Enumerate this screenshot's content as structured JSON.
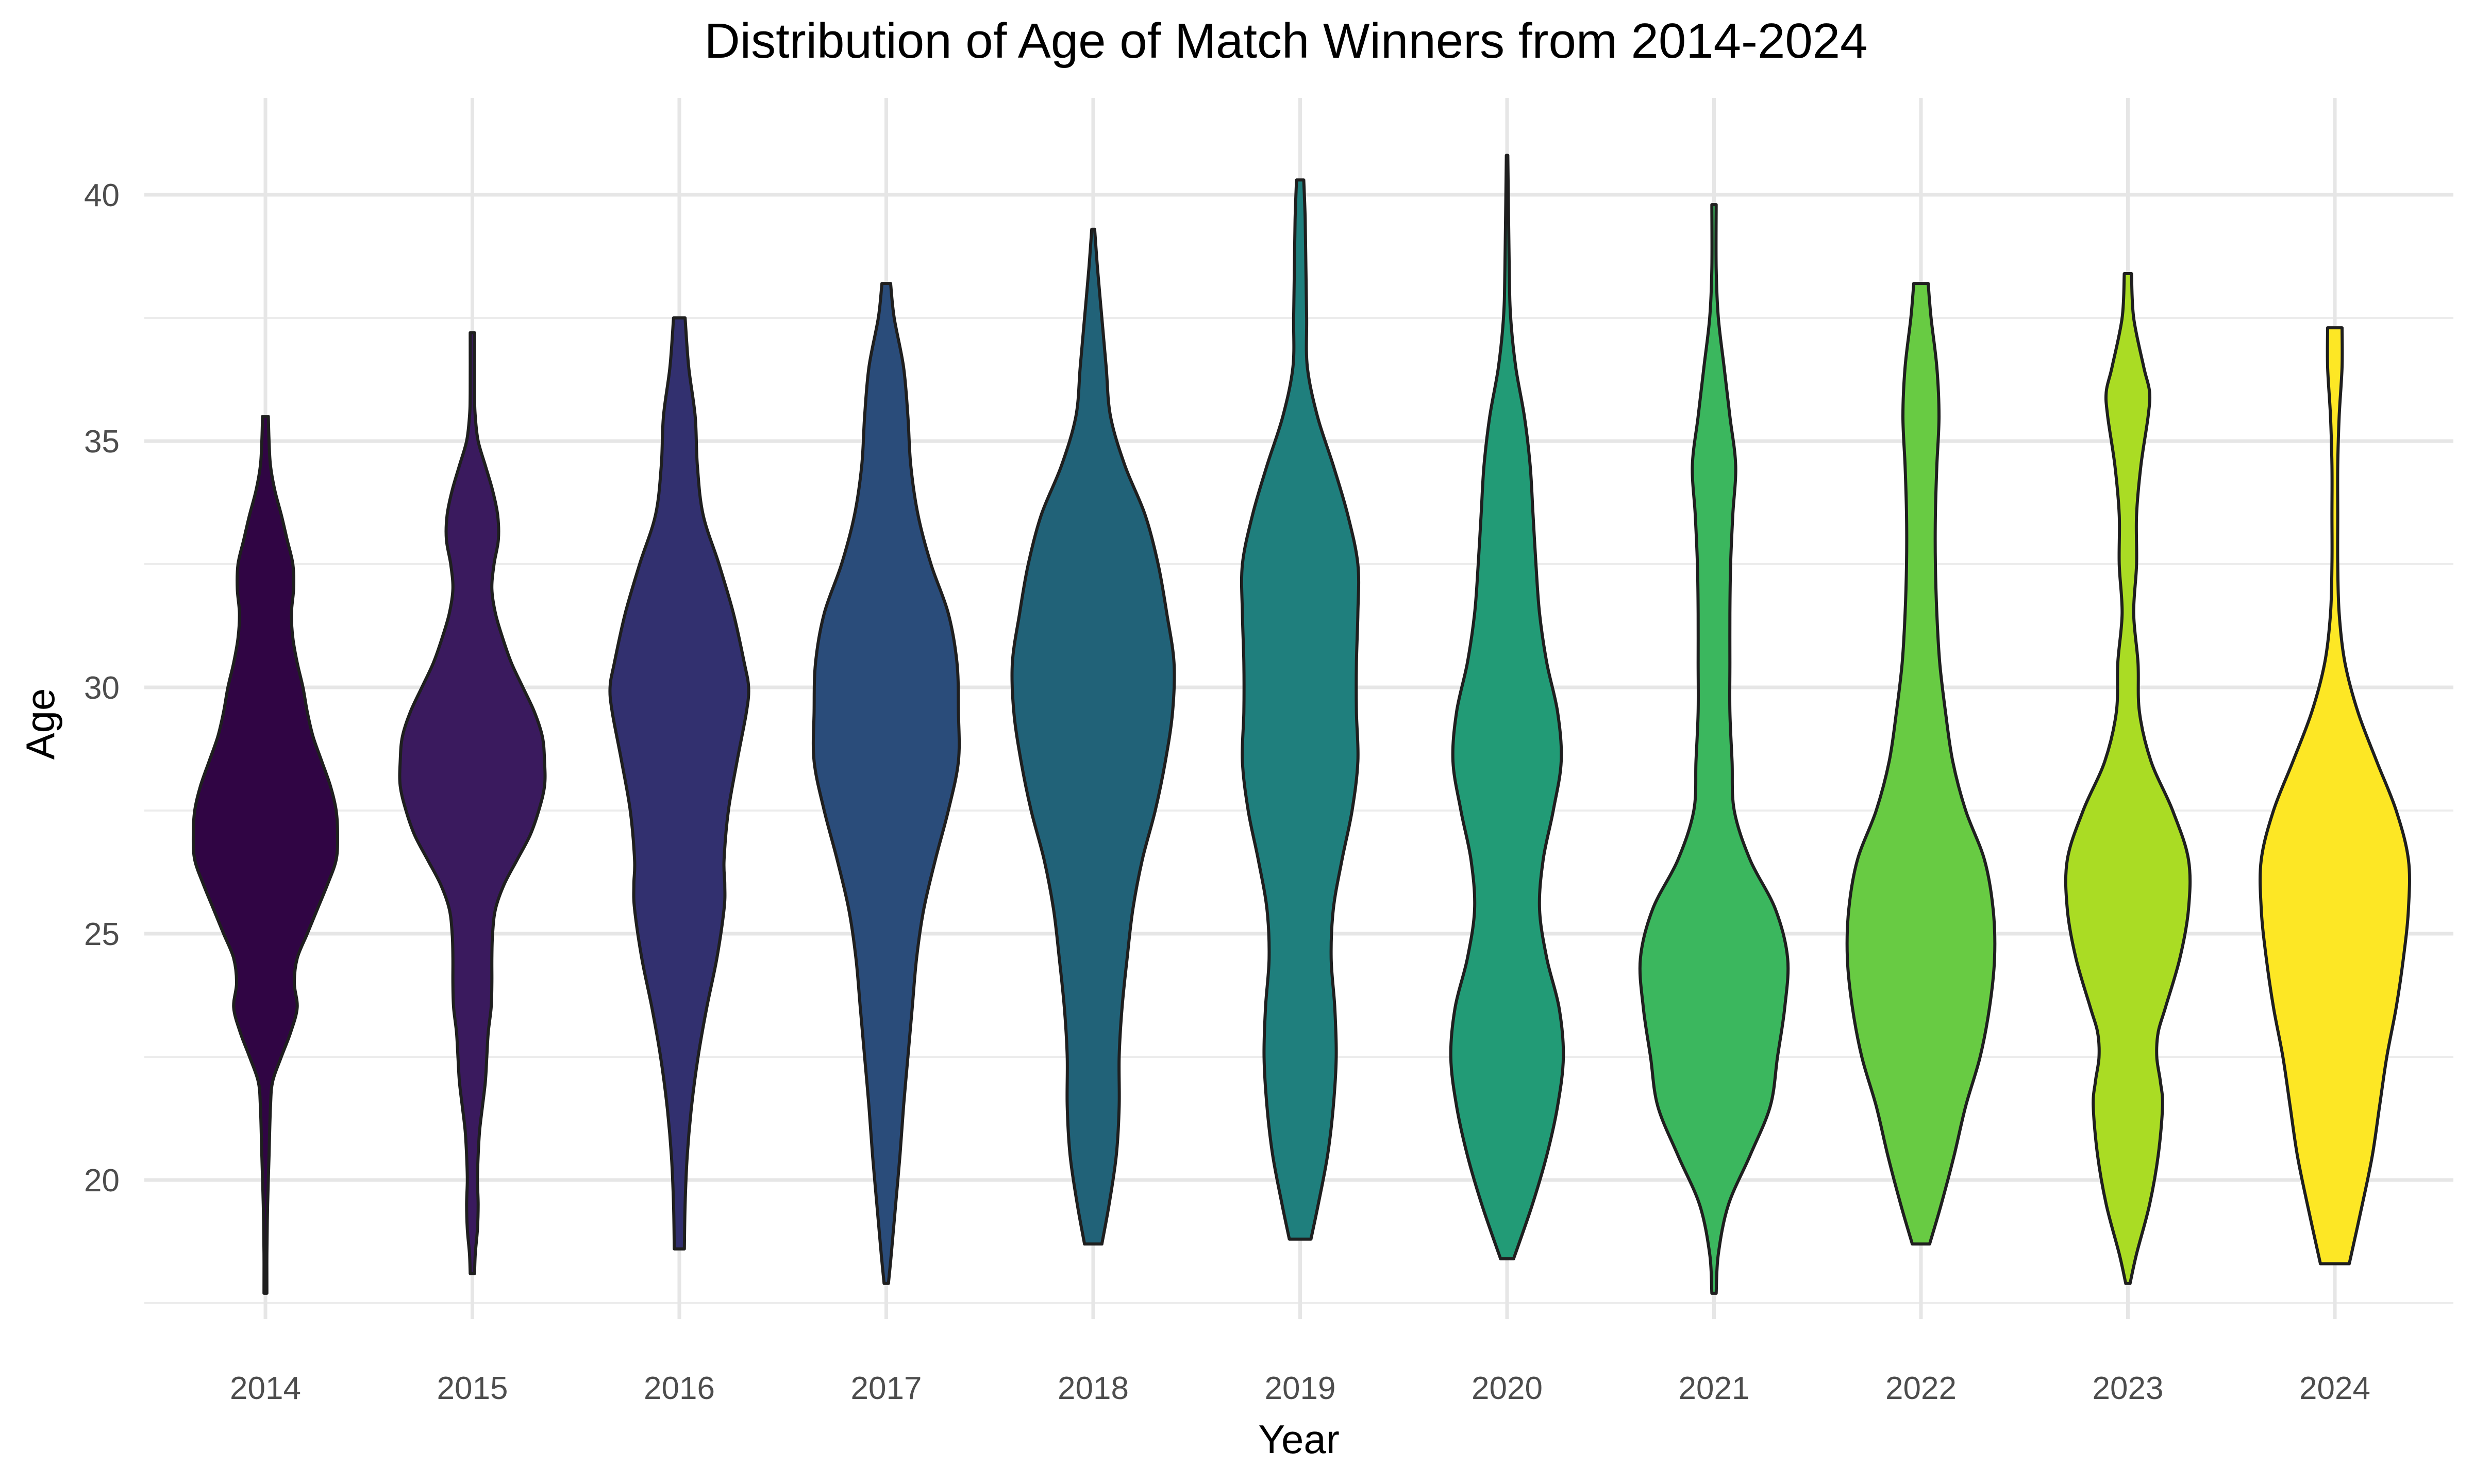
{
  "chart_data": {
    "type": "violin",
    "title": "Distribution of Age of Match Winners from 2014-2024",
    "xlabel": "Year",
    "ylabel": "Age",
    "ylim": [
      16.7,
      42
    ],
    "yticks": [
      20,
      25,
      30,
      35,
      40
    ],
    "grid": true,
    "legend": "none",
    "categories": [
      "2014",
      "2015",
      "2016",
      "2017",
      "2018",
      "2019",
      "2020",
      "2021",
      "2022",
      "2023",
      "2024"
    ],
    "series": [
      {
        "category": "2014",
        "color": "#300544",
        "min": 17.7,
        "max": 35.5,
        "density": [
          [
            17.7,
            0.02
          ],
          [
            18.5,
            0.02
          ],
          [
            19.5,
            0.03
          ],
          [
            20.5,
            0.05
          ],
          [
            21.5,
            0.07
          ],
          [
            22,
            0.1
          ],
          [
            22.5,
            0.22
          ],
          [
            23,
            0.35
          ],
          [
            23.5,
            0.44
          ],
          [
            24,
            0.4
          ],
          [
            24.5,
            0.44
          ],
          [
            25,
            0.58
          ],
          [
            25.5,
            0.72
          ],
          [
            26,
            0.86
          ],
          [
            26.5,
            0.98
          ],
          [
            27,
            1.0
          ],
          [
            27.5,
            0.98
          ],
          [
            28,
            0.9
          ],
          [
            28.5,
            0.78
          ],
          [
            29,
            0.66
          ],
          [
            29.5,
            0.58
          ],
          [
            30,
            0.52
          ],
          [
            30.5,
            0.44
          ],
          [
            31,
            0.38
          ],
          [
            31.5,
            0.36
          ],
          [
            32,
            0.39
          ],
          [
            32.5,
            0.38
          ],
          [
            33,
            0.3
          ],
          [
            33.5,
            0.22
          ],
          [
            34,
            0.13
          ],
          [
            34.5,
            0.07
          ],
          [
            35,
            0.05
          ],
          [
            35.5,
            0.04
          ]
        ]
      },
      {
        "category": "2015",
        "color": "#3a1a5e",
        "min": 18.1,
        "max": 37.2,
        "density": [
          [
            18.1,
            0.03
          ],
          [
            18.5,
            0.04
          ],
          [
            19,
            0.07
          ],
          [
            19.5,
            0.08
          ],
          [
            20,
            0.07
          ],
          [
            20.5,
            0.08
          ],
          [
            21,
            0.1
          ],
          [
            21.5,
            0.14
          ],
          [
            22,
            0.18
          ],
          [
            22.5,
            0.2
          ],
          [
            23,
            0.22
          ],
          [
            23.5,
            0.26
          ],
          [
            24,
            0.27
          ],
          [
            24.5,
            0.27
          ],
          [
            25,
            0.28
          ],
          [
            25.5,
            0.32
          ],
          [
            26,
            0.44
          ],
          [
            26.5,
            0.62
          ],
          [
            27,
            0.8
          ],
          [
            27.5,
            0.92
          ],
          [
            28,
            1.0
          ],
          [
            28.5,
            1.0
          ],
          [
            29,
            0.97
          ],
          [
            29.5,
            0.86
          ],
          [
            30,
            0.7
          ],
          [
            30.5,
            0.54
          ],
          [
            31,
            0.42
          ],
          [
            31.5,
            0.32
          ],
          [
            32,
            0.27
          ],
          [
            32.5,
            0.3
          ],
          [
            33,
            0.36
          ],
          [
            33.5,
            0.35
          ],
          [
            34,
            0.28
          ],
          [
            34.5,
            0.18
          ],
          [
            35,
            0.08
          ],
          [
            35.5,
            0.04
          ],
          [
            36,
            0.03
          ],
          [
            37.2,
            0.03
          ]
        ]
      },
      {
        "category": "2016",
        "color": "#32306f",
        "min": 18.6,
        "max": 37.5,
        "density": [
          [
            18.6,
            0.07
          ],
          [
            19.5,
            0.08
          ],
          [
            20.5,
            0.11
          ],
          [
            21.5,
            0.17
          ],
          [
            22.5,
            0.26
          ],
          [
            23.5,
            0.38
          ],
          [
            24.5,
            0.52
          ],
          [
            25.5,
            0.62
          ],
          [
            26,
            0.63
          ],
          [
            26.5,
            0.62
          ],
          [
            27.5,
            0.68
          ],
          [
            28.5,
            0.8
          ],
          [
            29.5,
            0.93
          ],
          [
            30,
            0.96
          ],
          [
            30.5,
            0.9
          ],
          [
            31.5,
            0.75
          ],
          [
            32.5,
            0.55
          ],
          [
            33.5,
            0.33
          ],
          [
            34.5,
            0.25
          ],
          [
            35.5,
            0.22
          ],
          [
            36.5,
            0.13
          ],
          [
            37.5,
            0.08
          ]
        ]
      },
      {
        "category": "2017",
        "color": "#2a4c7a",
        "min": 17.9,
        "max": 38.2,
        "density": [
          [
            17.9,
            0.03
          ],
          [
            18.5,
            0.07
          ],
          [
            19.5,
            0.13
          ],
          [
            20.5,
            0.19
          ],
          [
            21.5,
            0.24
          ],
          [
            22.5,
            0.3
          ],
          [
            23.5,
            0.36
          ],
          [
            24.5,
            0.42
          ],
          [
            25.5,
            0.52
          ],
          [
            26.5,
            0.68
          ],
          [
            27.5,
            0.86
          ],
          [
            28.5,
            1.0
          ],
          [
            29.5,
            1.0
          ],
          [
            30.5,
            0.98
          ],
          [
            31.5,
            0.86
          ],
          [
            32.5,
            0.62
          ],
          [
            33.5,
            0.44
          ],
          [
            34.5,
            0.34
          ],
          [
            35.5,
            0.3
          ],
          [
            36.5,
            0.24
          ],
          [
            37.5,
            0.11
          ],
          [
            38.2,
            0.06
          ]
        ]
      },
      {
        "category": "2018",
        "color": "#216278",
        "min": 18.7,
        "max": 39.3,
        "density": [
          [
            18.7,
            0.12
          ],
          [
            19.5,
            0.22
          ],
          [
            20.5,
            0.32
          ],
          [
            21.5,
            0.36
          ],
          [
            22.5,
            0.36
          ],
          [
            23.5,
            0.4
          ],
          [
            24.5,
            0.47
          ],
          [
            25.5,
            0.55
          ],
          [
            26.5,
            0.68
          ],
          [
            27.5,
            0.86
          ],
          [
            28.5,
            1.0
          ],
          [
            29.5,
            1.1
          ],
          [
            30.5,
            1.12
          ],
          [
            31.5,
            1.02
          ],
          [
            32.5,
            0.9
          ],
          [
            33.5,
            0.72
          ],
          [
            34.5,
            0.44
          ],
          [
            35.5,
            0.24
          ],
          [
            36.5,
            0.18
          ],
          [
            37.5,
            0.12
          ],
          [
            38.5,
            0.06
          ],
          [
            39.3,
            0.02
          ]
        ]
      },
      {
        "category": "2019",
        "color": "#1f7f7d",
        "min": 18.8,
        "max": 40.3,
        "density": [
          [
            18.8,
            0.15
          ],
          [
            19.5,
            0.25
          ],
          [
            20.5,
            0.38
          ],
          [
            21.5,
            0.46
          ],
          [
            22.5,
            0.5
          ],
          [
            23.5,
            0.48
          ],
          [
            24.5,
            0.43
          ],
          [
            25.5,
            0.46
          ],
          [
            26.5,
            0.58
          ],
          [
            27.5,
            0.72
          ],
          [
            28.5,
            0.8
          ],
          [
            29.5,
            0.78
          ],
          [
            30.5,
            0.78
          ],
          [
            31.5,
            0.8
          ],
          [
            32.5,
            0.8
          ],
          [
            33.5,
            0.66
          ],
          [
            34.5,
            0.46
          ],
          [
            35.5,
            0.24
          ],
          [
            36.5,
            0.1
          ],
          [
            37.5,
            0.09
          ],
          [
            38.5,
            0.08
          ],
          [
            39.5,
            0.07
          ],
          [
            40.3,
            0.05
          ]
        ]
      },
      {
        "category": "2020",
        "color": "#229b76",
        "min": 18.4,
        "max": 40.8,
        "density": [
          [
            18.4,
            0.09
          ],
          [
            19.5,
            0.35
          ],
          [
            20.5,
            0.55
          ],
          [
            21.5,
            0.7
          ],
          [
            22.5,
            0.78
          ],
          [
            23.5,
            0.72
          ],
          [
            24.5,
            0.55
          ],
          [
            25.5,
            0.45
          ],
          [
            26.5,
            0.5
          ],
          [
            27.5,
            0.64
          ],
          [
            28.5,
            0.75
          ],
          [
            29.5,
            0.7
          ],
          [
            30.5,
            0.55
          ],
          [
            31.5,
            0.45
          ],
          [
            32.5,
            0.4
          ],
          [
            33.5,
            0.36
          ],
          [
            34.5,
            0.32
          ],
          [
            35.5,
            0.24
          ],
          [
            36.5,
            0.12
          ],
          [
            37.5,
            0.05
          ],
          [
            38.5,
            0.03
          ],
          [
            40.8,
            0.01
          ]
        ]
      },
      {
        "category": "2021",
        "color": "#3bb75e",
        "min": 17.7,
        "max": 39.8,
        "density": [
          [
            17.7,
            0.03
          ],
          [
            18.5,
            0.06
          ],
          [
            19.5,
            0.2
          ],
          [
            20.5,
            0.5
          ],
          [
            21.5,
            0.78
          ],
          [
            22.5,
            0.88
          ],
          [
            23.5,
            0.98
          ],
          [
            24.5,
            1.02
          ],
          [
            25.5,
            0.85
          ],
          [
            26.5,
            0.5
          ],
          [
            27.5,
            0.28
          ],
          [
            28.5,
            0.25
          ],
          [
            29.5,
            0.22
          ],
          [
            30.5,
            0.22
          ],
          [
            31.5,
            0.22
          ],
          [
            32.5,
            0.23
          ],
          [
            33.5,
            0.26
          ],
          [
            34.5,
            0.3
          ],
          [
            35.5,
            0.22
          ],
          [
            36.5,
            0.14
          ],
          [
            37.5,
            0.06
          ],
          [
            38.5,
            0.03
          ],
          [
            39.8,
            0.03
          ]
        ]
      },
      {
        "category": "2022",
        "color": "#68cb43",
        "min": 18.7,
        "max": 38.2,
        "density": [
          [
            18.7,
            0.12
          ],
          [
            19.5,
            0.28
          ],
          [
            20.5,
            0.46
          ],
          [
            21.5,
            0.62
          ],
          [
            22.5,
            0.82
          ],
          [
            23.5,
            0.95
          ],
          [
            24.5,
            1.02
          ],
          [
            25.5,
            1.0
          ],
          [
            26.5,
            0.88
          ],
          [
            27.5,
            0.62
          ],
          [
            28.5,
            0.44
          ],
          [
            29.5,
            0.34
          ],
          [
            30.5,
            0.26
          ],
          [
            31.5,
            0.22
          ],
          [
            32.5,
            0.2
          ],
          [
            33.5,
            0.2
          ],
          [
            34.5,
            0.22
          ],
          [
            35.5,
            0.25
          ],
          [
            36.5,
            0.22
          ],
          [
            37.5,
            0.14
          ],
          [
            38.2,
            0.1
          ]
        ]
      },
      {
        "category": "2023",
        "color": "#aadc24",
        "min": 17.9,
        "max": 38.4,
        "density": [
          [
            17.9,
            0.03
          ],
          [
            18.5,
            0.12
          ],
          [
            19.5,
            0.3
          ],
          [
            20.5,
            0.42
          ],
          [
            21.5,
            0.48
          ],
          [
            22,
            0.45
          ],
          [
            22.5,
            0.4
          ],
          [
            23,
            0.42
          ],
          [
            23.5,
            0.52
          ],
          [
            24.5,
            0.72
          ],
          [
            25.5,
            0.84
          ],
          [
            26.5,
            0.84
          ],
          [
            27.5,
            0.62
          ],
          [
            28.5,
            0.32
          ],
          [
            29.5,
            0.16
          ],
          [
            30.5,
            0.14
          ],
          [
            31.5,
            0.08
          ],
          [
            32.5,
            0.12
          ],
          [
            33.5,
            0.12
          ],
          [
            34.5,
            0.18
          ],
          [
            35.5,
            0.28
          ],
          [
            36,
            0.3
          ],
          [
            36.5,
            0.22
          ],
          [
            37.5,
            0.08
          ],
          [
            38.4,
            0.05
          ]
        ]
      },
      {
        "category": "2024",
        "color": "#fde725",
        "min": 18.3,
        "max": 37.3,
        "density": [
          [
            18.3,
            0.2
          ],
          [
            19.5,
            0.38
          ],
          [
            20.5,
            0.52
          ],
          [
            21.5,
            0.62
          ],
          [
            22.5,
            0.72
          ],
          [
            23.5,
            0.85
          ],
          [
            24.5,
            0.95
          ],
          [
            25.5,
            1.02
          ],
          [
            26.5,
            1.02
          ],
          [
            27.5,
            0.85
          ],
          [
            28.5,
            0.58
          ],
          [
            29.5,
            0.32
          ],
          [
            30.5,
            0.14
          ],
          [
            31.5,
            0.06
          ],
          [
            32.5,
            0.04
          ],
          [
            33.5,
            0.04
          ],
          [
            34.5,
            0.04
          ],
          [
            35.5,
            0.06
          ],
          [
            36.5,
            0.1
          ],
          [
            37.3,
            0.1
          ]
        ]
      }
    ]
  }
}
